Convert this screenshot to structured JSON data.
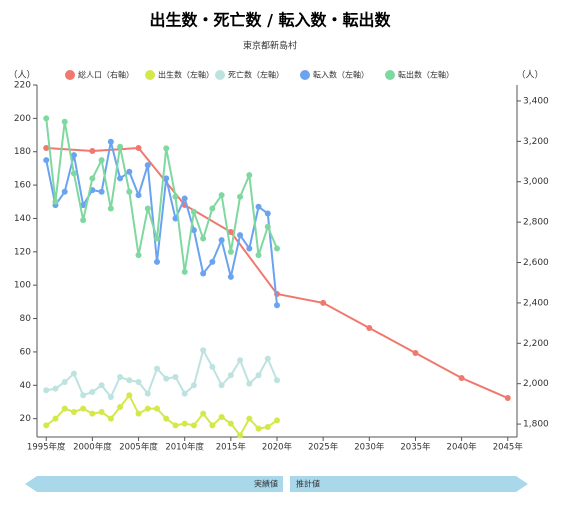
{
  "chart_data": {
    "type": "line",
    "title": "出生数・死亡数 / 転入数・転出数",
    "subtitle": "東京都新島村",
    "ylabel": "（人）",
    "y2label": "（人）",
    "xlim": [
      1994,
      2046
    ],
    "xticks": [
      {
        "value": 1995,
        "label": "1995年度"
      },
      {
        "value": 2000,
        "label": "2000年度"
      },
      {
        "value": 2005,
        "label": "2005年度"
      },
      {
        "value": 2010,
        "label": "2010年度"
      },
      {
        "value": 2015,
        "label": "2015年"
      },
      {
        "value": 2020,
        "label": "2020年"
      },
      {
        "value": 2025,
        "label": "2025年"
      },
      {
        "value": 2030,
        "label": "2030年"
      },
      {
        "value": 2035,
        "label": "2035年"
      },
      {
        "value": 2040,
        "label": "2040年"
      },
      {
        "value": 2045,
        "label": "2045年"
      }
    ],
    "ylim": [
      9,
      220
    ],
    "yticks": [
      20,
      40,
      60,
      80,
      100,
      120,
      140,
      160,
      180,
      200,
      220
    ],
    "y2lim": [
      1736,
      3479
    ],
    "y2ticks": [
      {
        "value": 1800,
        "label": "1,800"
      },
      {
        "value": 2000,
        "label": "2,000"
      },
      {
        "value": 2200,
        "label": "2,200"
      },
      {
        "value": 2400,
        "label": "2,400"
      },
      {
        "value": 2600,
        "label": "2,600"
      },
      {
        "value": 2800,
        "label": "2,800"
      },
      {
        "value": 3000,
        "label": "3,000"
      },
      {
        "value": 3200,
        "label": "3,200"
      },
      {
        "value": 3400,
        "label": "3,400"
      }
    ],
    "legend": "top",
    "series": [
      {
        "name": "総人口（右軸）",
        "color": "#f0786e",
        "axis": "y2",
        "x": [
          1995,
          2000,
          2005,
          2010,
          2015,
          2020,
          2025,
          2030,
          2035,
          2040,
          2045
        ],
        "values": [
          3167,
          3152,
          3167,
          2885,
          2751,
          2444,
          2400,
          2276,
          2152,
          2028,
          1929
        ]
      },
      {
        "name": "出生数（左軸）",
        "color": "#d4e84a",
        "x": [
          1995,
          1996,
          1997,
          1998,
          1999,
          2000,
          2001,
          2002,
          2003,
          2004,
          2005,
          2006,
          2007,
          2008,
          2009,
          2010,
          2011,
          2012,
          2013,
          2014,
          2015,
          2016,
          2017,
          2018,
          2019,
          2020
        ],
        "values": [
          16,
          20,
          26,
          24,
          26,
          23,
          24,
          20,
          27,
          34,
          23,
          26,
          26,
          20,
          16,
          17,
          16,
          23,
          16,
          21,
          17,
          10,
          20,
          14,
          15,
          19
        ]
      },
      {
        "name": "死亡数（左軸）",
        "color": "#bde3e0",
        "x": [
          1995,
          1996,
          1997,
          1998,
          1999,
          2000,
          2001,
          2002,
          2003,
          2004,
          2005,
          2006,
          2007,
          2008,
          2009,
          2010,
          2011,
          2012,
          2013,
          2014,
          2015,
          2016,
          2017,
          2018,
          2019,
          2020
        ],
        "values": [
          37,
          38,
          42,
          47,
          34,
          36,
          40,
          33,
          45,
          43,
          42,
          35,
          50,
          44,
          45,
          35,
          40,
          61,
          51,
          40,
          46,
          55,
          41,
          46,
          56,
          43
        ]
      },
      {
        "name": "転入数（左軸）",
        "color": "#6aa3f0",
        "x": [
          1995,
          1996,
          1997,
          1998,
          1999,
          2000,
          2001,
          2002,
          2003,
          2004,
          2005,
          2006,
          2007,
          2008,
          2009,
          2010,
          2011,
          2012,
          2013,
          2014,
          2015,
          2016,
          2017,
          2018,
          2019,
          2020
        ],
        "values": [
          175,
          148,
          156,
          178,
          148,
          157,
          156,
          186,
          164,
          168,
          154,
          172,
          114,
          164,
          140,
          152,
          133,
          107,
          114,
          127,
          105,
          130,
          122,
          147,
          143,
          88
        ]
      },
      {
        "name": "転出数（左軸）",
        "color": "#7fd8a0",
        "x": [
          1995,
          1996,
          1997,
          1998,
          1999,
          2000,
          2001,
          2002,
          2003,
          2004,
          2005,
          2006,
          2007,
          2008,
          2009,
          2010,
          2011,
          2012,
          2013,
          2014,
          2015,
          2016,
          2017,
          2018,
          2019,
          2020
        ],
        "values": [
          200,
          150,
          198,
          167,
          139,
          164,
          175,
          146,
          183,
          156,
          118,
          146,
          128,
          182,
          153,
          108,
          144,
          128,
          146,
          154,
          120,
          153,
          166,
          118,
          135,
          122
        ]
      }
    ],
    "annotations": [
      "実績値",
      "推計値"
    ]
  }
}
